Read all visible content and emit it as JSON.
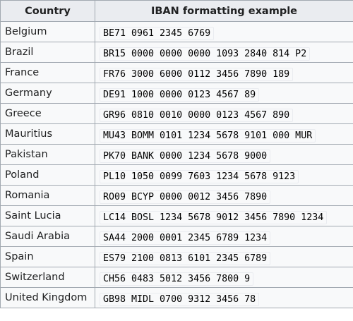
{
  "table": {
    "headers": {
      "country": "Country",
      "iban": "IBAN formatting example"
    },
    "rows": [
      {
        "country": "Belgium",
        "iban": "BE71 0961 2345 6769"
      },
      {
        "country": "Brazil",
        "iban": "BR15 0000 0000 0000 1093 2840 814 P2"
      },
      {
        "country": "France",
        "iban": "FR76 3000 6000 0112 3456 7890 189"
      },
      {
        "country": "Germany",
        "iban": "DE91 1000 0000 0123 4567 89"
      },
      {
        "country": "Greece",
        "iban": "GR96 0810 0010 0000 0123 4567 890"
      },
      {
        "country": "Mauritius",
        "iban": "MU43 BOMM 0101 1234 5678 9101 000 MUR"
      },
      {
        "country": "Pakistan",
        "iban": "PK70 BANK 0000 1234 5678 9000"
      },
      {
        "country": "Poland",
        "iban": "PL10 1050 0099 7603 1234 5678 9123"
      },
      {
        "country": "Romania",
        "iban": "RO09 BCYP 0000 0012 3456 7890"
      },
      {
        "country": "Saint Lucia",
        "iban": "LC14 BOSL 1234 5678 9012 3456 7890 1234"
      },
      {
        "country": "Saudi Arabia",
        "iban": "SA44 2000 0001 2345 6789 1234"
      },
      {
        "country": "Spain",
        "iban": "ES79 2100 0813 6101 2345 6789"
      },
      {
        "country": "Switzerland",
        "iban": "CH56 0483 5012 3456 7800 9"
      },
      {
        "country": "United Kingdom",
        "iban": "GB98 MIDL 0700 9312 3456 78"
      }
    ]
  }
}
